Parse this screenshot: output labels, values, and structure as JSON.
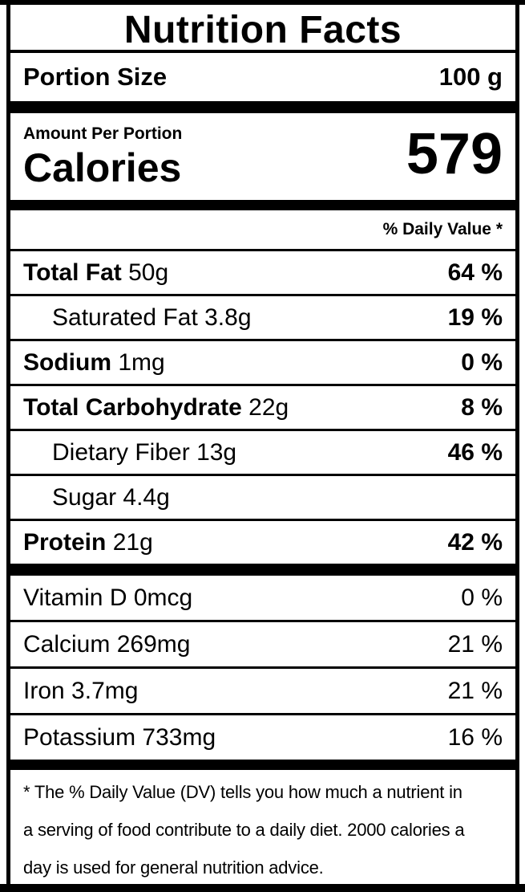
{
  "label": {
    "title": "Nutrition Facts",
    "portion": {
      "name": "Portion Size",
      "value": "100 g"
    },
    "calories": {
      "heading": "Amount Per Portion",
      "name": "Calories",
      "value": "579"
    },
    "daily_value_header": "% Daily Value *",
    "nutrients": [
      {
        "name": "Total Fat",
        "amount": "50g",
        "dv": "64 %"
      },
      {
        "name": "Saturated Fat",
        "amount": "3.8g",
        "dv": "19 %"
      },
      {
        "name": "Sodium",
        "amount": "1mg",
        "dv": "0 %"
      },
      {
        "name": "Total Carbohydrate",
        "amount": "22g",
        "dv": "8 %"
      },
      {
        "name": "Dietary Fiber",
        "amount": "13g",
        "dv": "46 %"
      },
      {
        "name": "Sugar",
        "amount": "4.4g",
        "dv": ""
      },
      {
        "name": "Protein",
        "amount": "21g",
        "dv": "42 %"
      }
    ],
    "micronutrients": [
      {
        "name": "Vitamin D",
        "amount": "0mcg",
        "dv": "0 %"
      },
      {
        "name": "Calcium",
        "amount": "269mg",
        "dv": "21 %"
      },
      {
        "name": "Iron",
        "amount": "3.7mg",
        "dv": "21 %"
      },
      {
        "name": "Potassium",
        "amount": "733mg",
        "dv": "16 %"
      }
    ],
    "footnote_lines": [
      "* The % Daily Value (DV) tells you how much a nutrient in",
      "a serving of food contribute to a daily diet. 2000 calories a",
      "day is used for general nutrition advice."
    ]
  },
  "colors": {
    "ink": "#000000",
    "background": "#ffffff"
  }
}
